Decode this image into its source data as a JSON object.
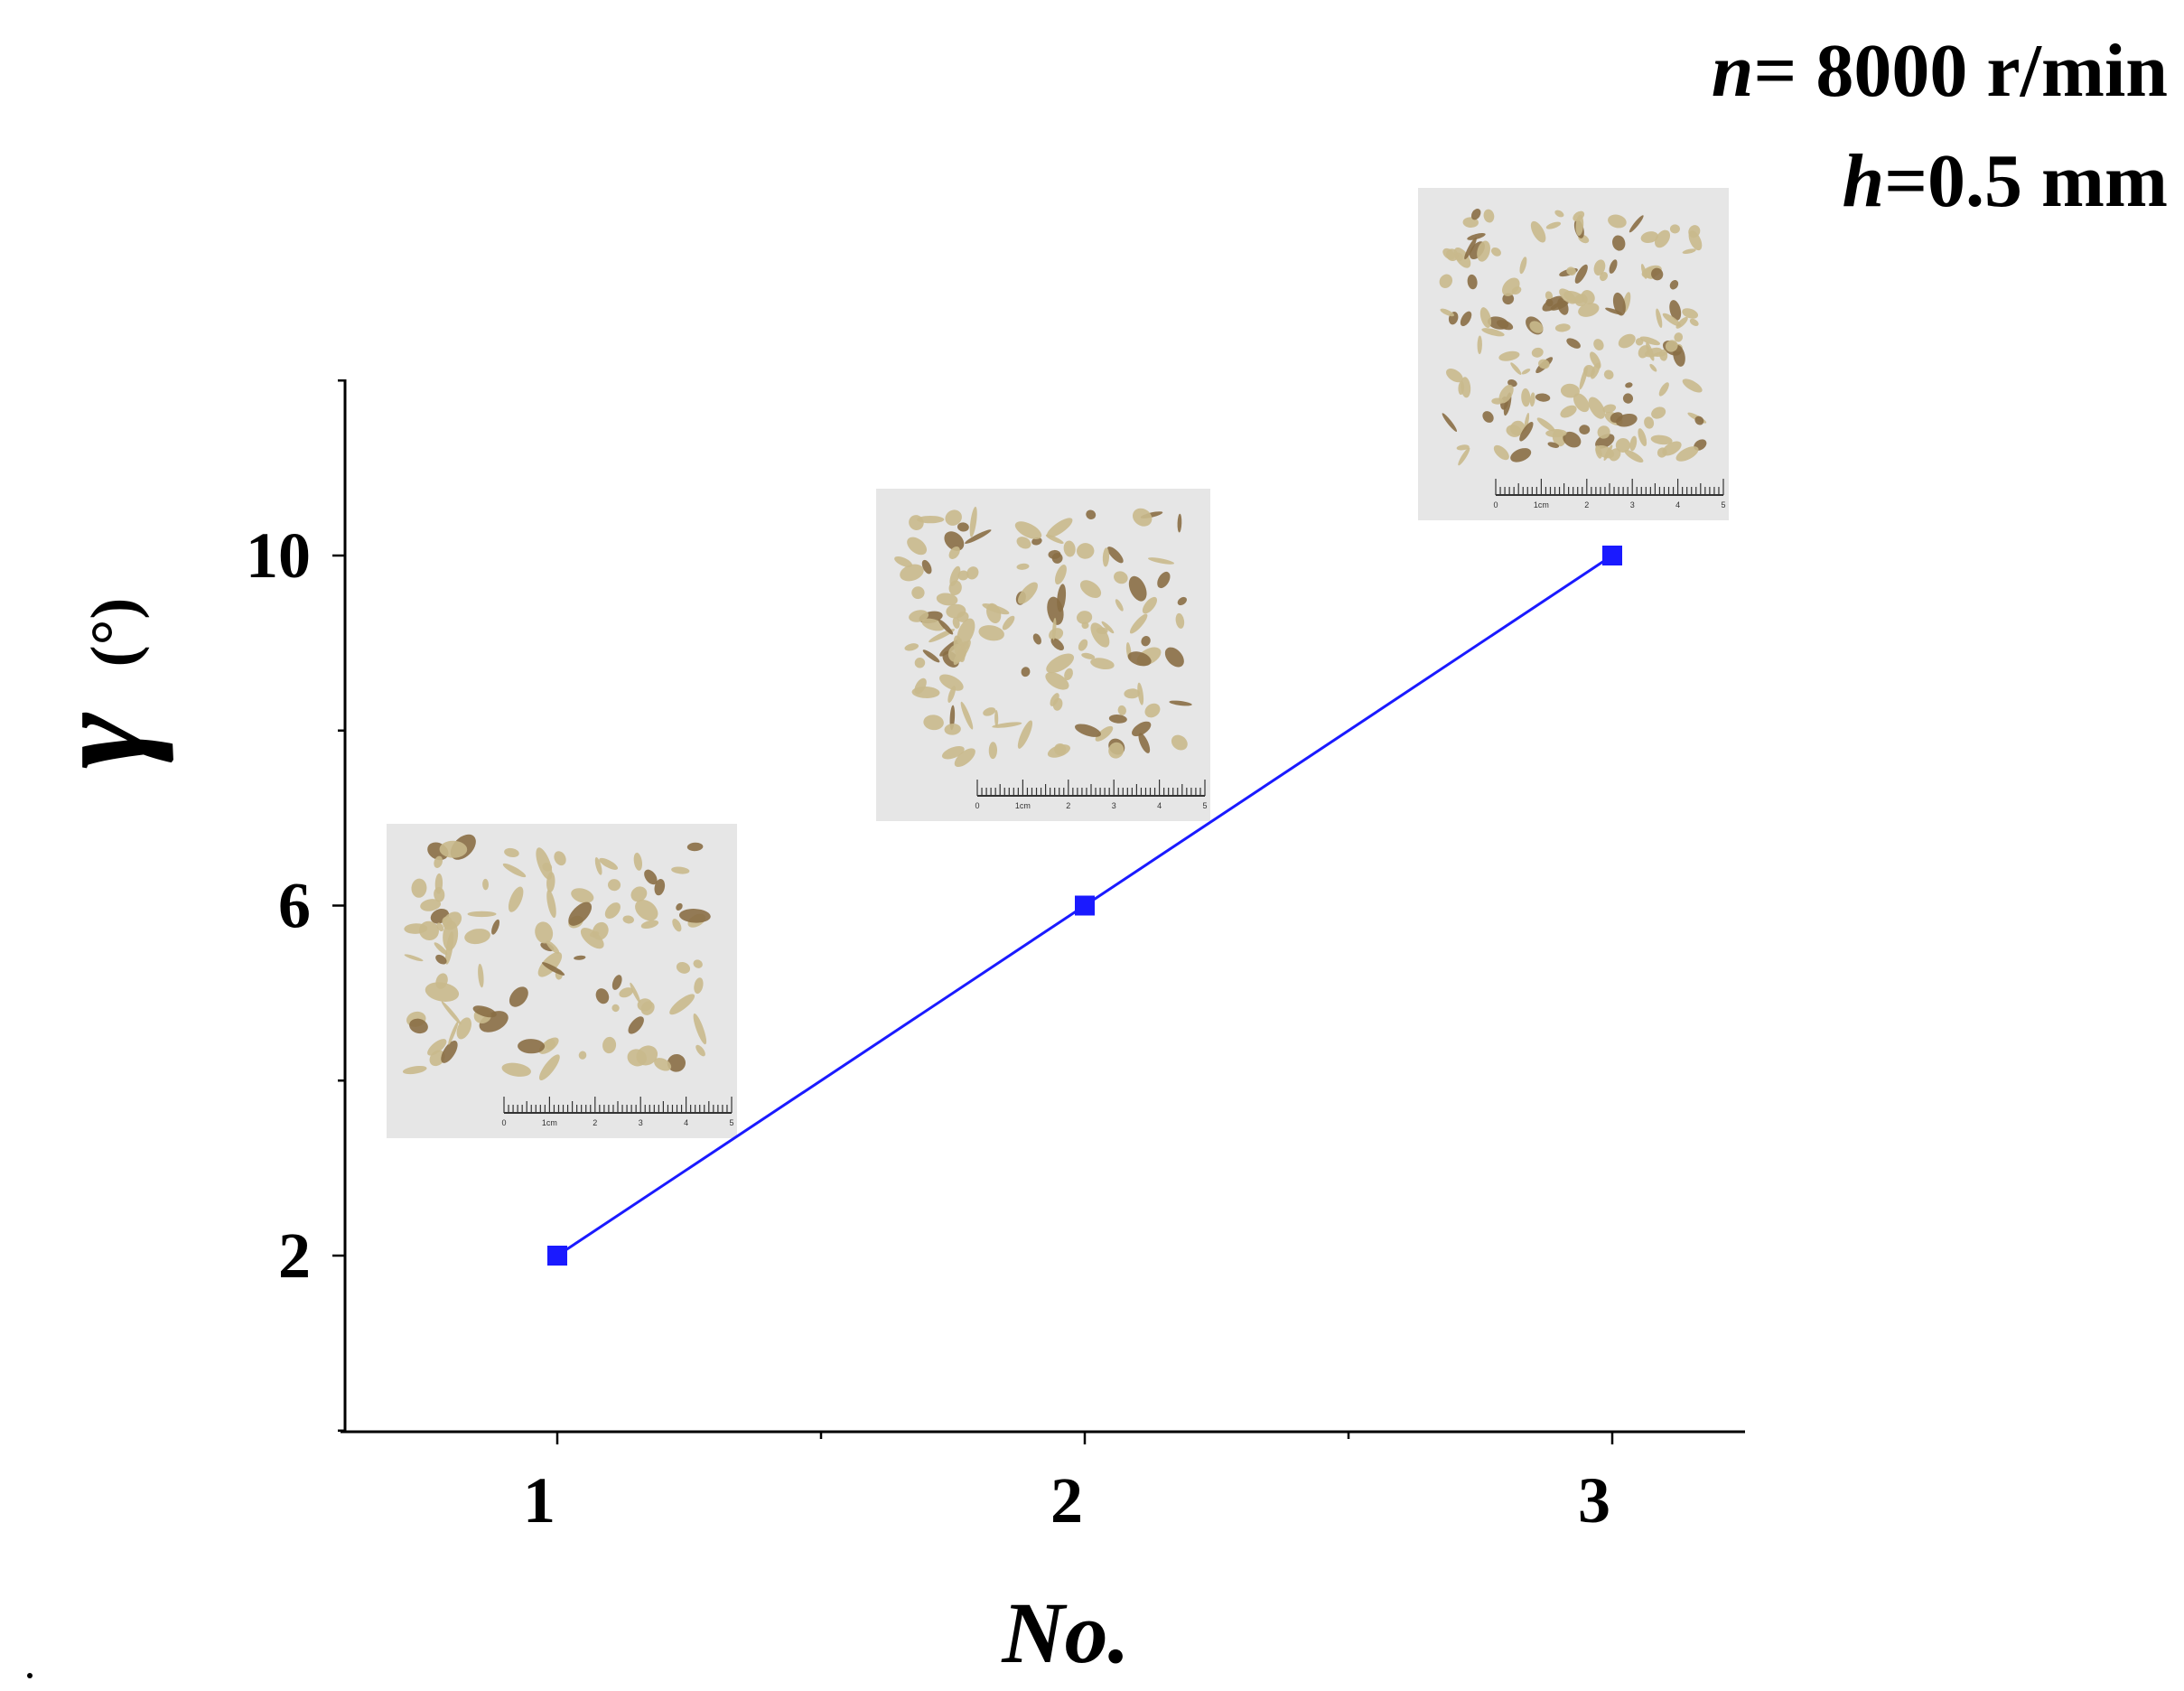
{
  "annotations": {
    "speed": {
      "symbol": "n",
      "text": "= 8000 r/min"
    },
    "depth": {
      "symbol": "h",
      "text": "=0.5 mm"
    }
  },
  "chart_data": {
    "type": "line",
    "x": [
      1,
      2,
      3
    ],
    "xticks": [
      "1",
      "2",
      "3"
    ],
    "series": [
      {
        "values": [
          2,
          6,
          10
        ],
        "color": "#1a1aff",
        "marker": "square"
      }
    ],
    "yticks": [
      "2",
      "6",
      "10"
    ],
    "ylabel_symbol": "γ",
    "ylabel_unit": "(°)",
    "xlabel": "No.",
    "xlim": [
      0.6,
      3.25
    ],
    "ylim": [
      0,
      12
    ],
    "grid": false,
    "inset_images": [
      {
        "for_x": 1,
        "content": "chip sample photo with ruler",
        "ruler_labels": [
          "0",
          "1cm",
          "2",
          "3",
          "4",
          "5"
        ]
      },
      {
        "for_x": 2,
        "content": "chip sample photo with ruler",
        "ruler_labels": [
          "0",
          "1cm",
          "2",
          "3",
          "4",
          "5"
        ]
      },
      {
        "for_x": 3,
        "content": "chip sample photo with ruler",
        "ruler_labels": [
          "0",
          "1cm",
          "2",
          "3",
          "4",
          "5"
        ]
      }
    ]
  },
  "colors": {
    "axis": "#000000",
    "series": "#1a1aff",
    "photo_bg": "#e6e6e6",
    "chip": "#c9b98c",
    "chip_dark": "#8a6e45"
  }
}
